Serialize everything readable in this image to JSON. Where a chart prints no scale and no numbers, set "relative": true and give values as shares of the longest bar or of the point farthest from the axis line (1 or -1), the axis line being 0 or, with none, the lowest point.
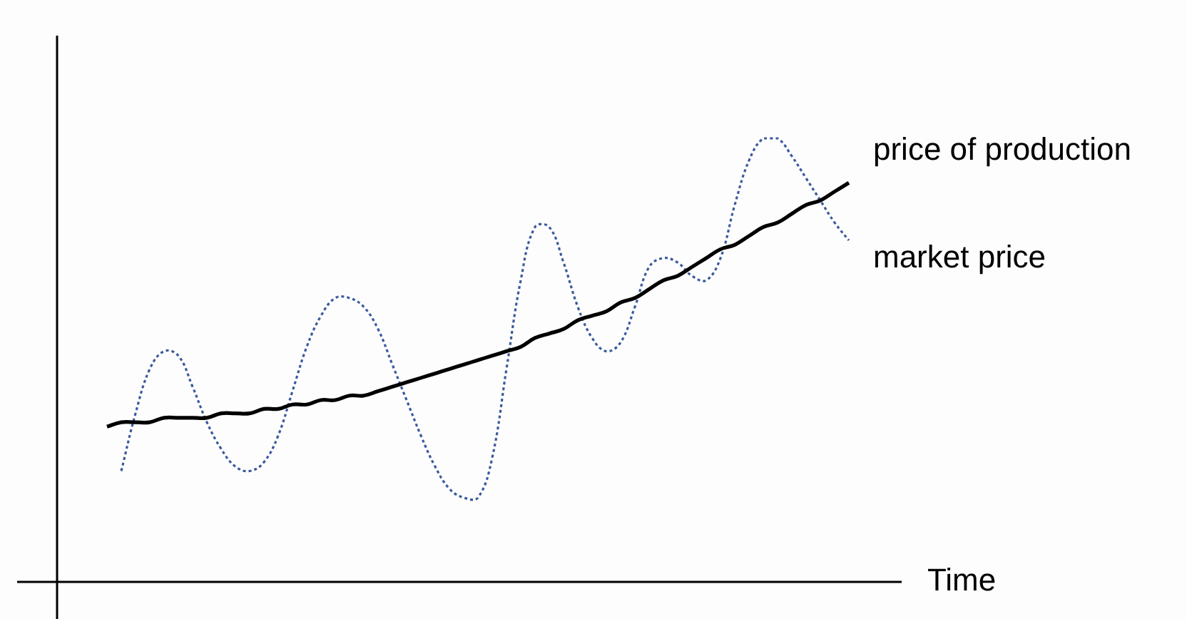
{
  "chart_data": {
    "type": "line",
    "relative": true,
    "xlabel": "Time",
    "legend": false,
    "marker": "none",
    "categories": [
      null,
      null,
      null,
      null,
      null,
      null,
      null,
      null,
      null,
      null,
      null,
      null,
      null,
      null,
      null,
      null,
      null,
      null,
      null,
      null,
      null,
      null,
      null,
      null,
      null,
      null,
      null,
      null,
      null,
      null,
      null,
      null,
      null,
      null,
      null,
      null,
      null,
      null,
      null,
      null,
      null,
      null,
      null,
      null,
      null,
      null,
      null,
      null,
      null,
      null,
      null,
      null,
      null
    ],
    "series": [
      {
        "name": "price of production",
        "color": "#000000",
        "line_style": "solid",
        "values": [
          0.35,
          0.36,
          0.36,
          0.36,
          0.37,
          0.37,
          0.37,
          0.37,
          0.38,
          0.38,
          0.38,
          0.39,
          0.39,
          0.4,
          0.4,
          0.41,
          0.41,
          0.42,
          0.42,
          0.43,
          0.44,
          0.45,
          0.46,
          0.47,
          0.48,
          0.49,
          0.5,
          0.51,
          0.52,
          0.53,
          0.55,
          0.56,
          0.57,
          0.59,
          0.6,
          0.61,
          0.63,
          0.64,
          0.66,
          0.68,
          0.69,
          0.71,
          0.73,
          0.75,
          0.76,
          0.78,
          0.8,
          0.81,
          0.83,
          0.85,
          0.86,
          0.88,
          0.9
        ]
      },
      {
        "name": "market price",
        "color": "#3a5a9c",
        "line_style": "dotted",
        "values": [
          null,
          0.25,
          0.38,
          0.48,
          0.52,
          0.51,
          0.44,
          0.36,
          0.3,
          0.26,
          0.25,
          0.27,
          0.33,
          0.43,
          0.53,
          0.6,
          0.64,
          0.64,
          0.62,
          0.57,
          0.49,
          0.41,
          0.33,
          0.26,
          0.21,
          0.19,
          0.19,
          0.28,
          0.48,
          0.68,
          0.8,
          0.8,
          0.72,
          0.62,
          0.55,
          0.52,
          0.54,
          0.62,
          0.71,
          0.73,
          0.72,
          0.69,
          0.68,
          0.73,
          0.85,
          0.95,
          1.0,
          1.0,
          0.96,
          0.91,
          0.86,
          0.81,
          0.77
        ]
      }
    ]
  }
}
